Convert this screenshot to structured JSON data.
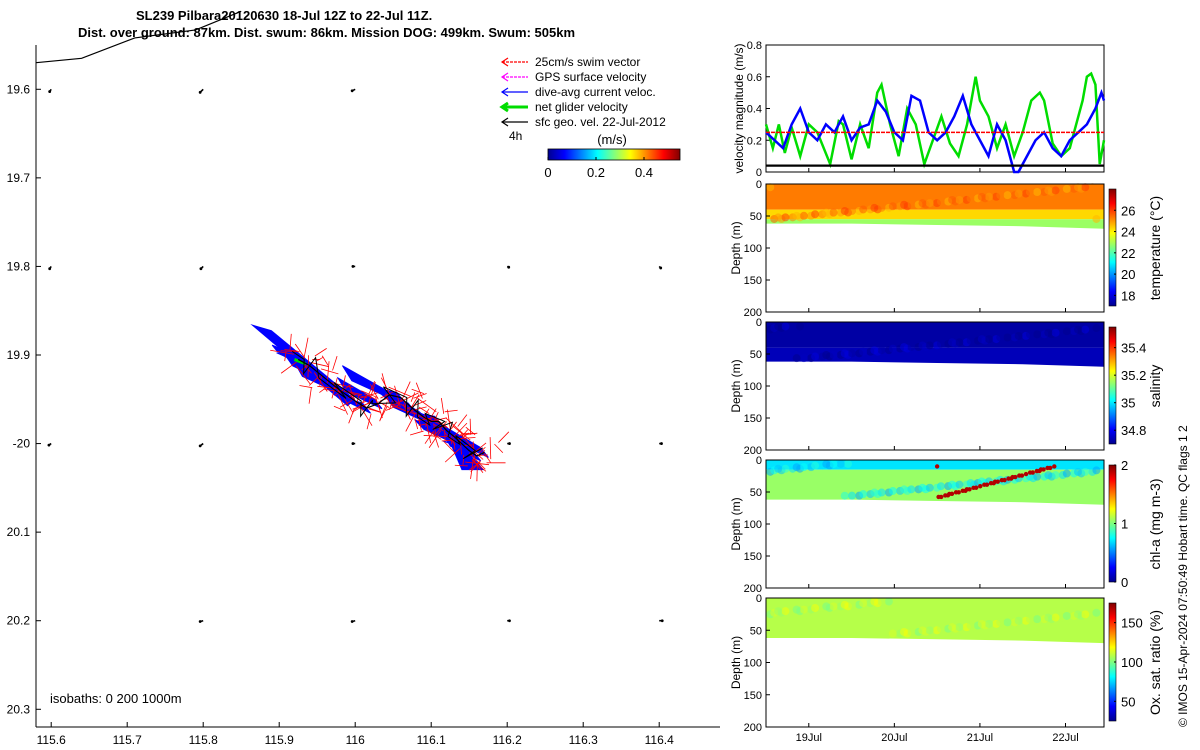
{
  "title_line1": "SL239 Pilbara20120630 18-Jul 12Z to 22-Jul 11Z.",
  "title_line2": "Dist. over ground: 87km. Dist. swum: 86km. Mission DOG: 499km. Swum: 505km",
  "credit": "© IMOS 15-Apr-2024 07:50:49 Hobart time. QC flags 1  2",
  "colors": {
    "swim": "#ff0000",
    "gps": "#ff00ff",
    "current": "#0000ff",
    "net": "#00dd00",
    "geo": "#000000"
  },
  "chart_data": [
    {
      "type": "map",
      "name": "track_map",
      "xlim": [
        115.58,
        116.48
      ],
      "ylim": [
        -20.32,
        -19.55
      ],
      "x_ticks": [
        115.6,
        115.7,
        115.8,
        115.9,
        116,
        116.1,
        116.2,
        116.3,
        116.4
      ],
      "x_tick_labels": [
        "115.6",
        "115.7",
        "115.8",
        "115.9",
        "116",
        "116.1",
        "116.2",
        "116.3",
        "116.4"
      ],
      "y_ticks": [
        -19.6,
        -19.7,
        -19.8,
        -19.9,
        -20,
        -20.1,
        -20.2,
        -20.3
      ],
      "y_tick_labels": [
        "19.6",
        "19.7",
        "19.8",
        "19.9",
        "-20",
        "20.1",
        "20.2",
        "20.3"
      ],
      "legend": [
        {
          "label": "25cm/s swim vector",
          "key": "swim"
        },
        {
          "label": "GPS surface velocity",
          "key": "gps"
        },
        {
          "label": "dive-avg current veloc.",
          "key": "current"
        },
        {
          "label": "net glider velocity",
          "key": "net"
        },
        {
          "label": "sfc geo. vel. 22-Jul-2012",
          "key": "geo"
        }
      ],
      "legend_note": "4h",
      "colorbar": {
        "label": "(m/s)",
        "ticks": [
          0,
          0.2,
          0.4
        ],
        "tick_labels": [
          "0",
          "0.2",
          "0.4"
        ],
        "range": [
          0,
          0.55
        ]
      },
      "isobath_note": "isobaths: 0   200  1000m",
      "coastline": [
        [
          115.58,
          -19.57
        ],
        [
          115.64,
          -19.565
        ],
        [
          115.71,
          -19.542
        ],
        [
          115.79,
          -19.533
        ],
        [
          115.85,
          -19.512
        ]
      ],
      "geo_vectors": [
        [
          115.6,
          -19.6,
          -0.002,
          -0.003
        ],
        [
          115.8,
          -19.6,
          -0.004,
          -0.004
        ],
        [
          116.0,
          -19.6,
          -0.004,
          -0.002
        ],
        [
          115.6,
          -19.8,
          -0.002,
          -0.003
        ],
        [
          115.8,
          -19.8,
          -0.003,
          -0.003
        ],
        [
          116.0,
          -19.8,
          -0.003,
          0
        ],
        [
          116.2,
          -19.8,
          0.002,
          -0.001
        ],
        [
          116.4,
          -19.8,
          0.002,
          -0.002
        ],
        [
          115.6,
          -20.0,
          -0.003,
          -0.002
        ],
        [
          115.8,
          -20.0,
          -0.004,
          -0.003
        ],
        [
          116.0,
          -20.0,
          -0.003,
          0
        ],
        [
          116.2,
          -20.0,
          0.003,
          0
        ],
        [
          116.4,
          -20.0,
          0.003,
          0
        ],
        [
          115.8,
          -20.2,
          -0.004,
          -0.001
        ],
        [
          116.0,
          -20.2,
          -0.004,
          -0.001
        ],
        [
          116.2,
          -20.2,
          0.003,
          0
        ],
        [
          116.4,
          -20.2,
          0.004,
          0
        ]
      ],
      "glider_track": [
        [
          115.925,
          -19.905
        ],
        [
          115.94,
          -19.912
        ],
        [
          115.96,
          -19.926
        ],
        [
          115.98,
          -19.94
        ],
        [
          116.0,
          -19.952
        ],
        [
          116.015,
          -19.96
        ],
        [
          116.03,
          -19.955
        ],
        [
          116.045,
          -19.945
        ],
        [
          116.06,
          -19.948
        ],
        [
          116.075,
          -19.96
        ],
        [
          116.09,
          -19.97
        ],
        [
          116.1,
          -19.975
        ],
        [
          116.11,
          -19.975
        ],
        [
          116.12,
          -19.985
        ],
        [
          116.13,
          -19.992
        ],
        [
          116.14,
          -20.0
        ],
        [
          116.15,
          -20.008
        ],
        [
          116.16,
          -20.014
        ],
        [
          116.17,
          -20.01
        ]
      ]
    },
    {
      "type": "line",
      "name": "velocity_magnitude",
      "ylabel": "velocity magnitude (m/s)",
      "x_range_days": [
        18.5,
        22.45
      ],
      "ylim": [
        0,
        0.8
      ],
      "y_ticks": [
        0,
        0.2,
        0.4,
        0.6,
        0.8
      ],
      "y_tick_labels": [
        "0",
        "0.2",
        "0.4",
        "0.6",
        "0.8"
      ],
      "series": [
        {
          "key": "net",
          "points": [
            [
              18.5,
              0.3
            ],
            [
              18.58,
              0.15
            ],
            [
              18.65,
              0.3
            ],
            [
              18.72,
              0.12
            ],
            [
              18.8,
              0.28
            ],
            [
              18.9,
              0.1
            ],
            [
              19.0,
              0.3
            ],
            [
              19.1,
              0.25
            ],
            [
              19.25,
              0.05
            ],
            [
              19.35,
              0.32
            ],
            [
              19.4,
              0.3
            ],
            [
              19.5,
              0.08
            ],
            [
              19.6,
              0.3
            ],
            [
              19.7,
              0.15
            ],
            [
              19.8,
              0.5
            ],
            [
              19.85,
              0.55
            ],
            [
              19.95,
              0.3
            ],
            [
              20.05,
              0.1
            ],
            [
              20.15,
              0.4
            ],
            [
              20.25,
              0.3
            ],
            [
              20.35,
              0.05
            ],
            [
              20.45,
              0.2
            ],
            [
              20.55,
              0.35
            ],
            [
              20.65,
              0.18
            ],
            [
              20.75,
              0.1
            ],
            [
              20.85,
              0.3
            ],
            [
              20.95,
              0.6
            ],
            [
              21.0,
              0.45
            ],
            [
              21.1,
              0.35
            ],
            [
              21.2,
              0.15
            ],
            [
              21.3,
              0.3
            ],
            [
              21.4,
              0.1
            ],
            [
              21.5,
              0.25
            ],
            [
              21.6,
              0.45
            ],
            [
              21.7,
              0.5
            ],
            [
              21.75,
              0.45
            ],
            [
              21.85,
              0.18
            ],
            [
              21.95,
              0.1
            ],
            [
              22.05,
              0.15
            ],
            [
              22.15,
              0.35
            ],
            [
              22.2,
              0.45
            ],
            [
              22.25,
              0.6
            ],
            [
              22.3,
              0.62
            ],
            [
              22.35,
              0.55
            ],
            [
              22.4,
              0.05
            ],
            [
              22.45,
              0.2
            ]
          ]
        },
        {
          "key": "current",
          "points": [
            [
              18.5,
              0.25
            ],
            [
              18.6,
              0.2
            ],
            [
              18.7,
              0.15
            ],
            [
              18.8,
              0.3
            ],
            [
              18.9,
              0.4
            ],
            [
              19.0,
              0.25
            ],
            [
              19.1,
              0.2
            ],
            [
              19.2,
              0.3
            ],
            [
              19.3,
              0.25
            ],
            [
              19.4,
              0.35
            ],
            [
              19.5,
              0.2
            ],
            [
              19.6,
              0.28
            ],
            [
              19.7,
              0.3
            ],
            [
              19.8,
              0.45
            ],
            [
              19.9,
              0.38
            ],
            [
              20.0,
              0.25
            ],
            [
              20.1,
              0.2
            ],
            [
              20.2,
              0.48
            ],
            [
              20.3,
              0.45
            ],
            [
              20.4,
              0.25
            ],
            [
              20.5,
              0.2
            ],
            [
              20.6,
              0.25
            ],
            [
              20.7,
              0.35
            ],
            [
              20.8,
              0.48
            ],
            [
              20.9,
              0.3
            ],
            [
              21.0,
              0.2
            ],
            [
              21.1,
              0.1
            ],
            [
              21.2,
              0.3
            ],
            [
              21.3,
              0.2
            ],
            [
              21.4,
              0.0
            ],
            [
              21.45,
              0.0
            ],
            [
              21.55,
              0.1
            ],
            [
              21.65,
              0.2
            ],
            [
              21.75,
              0.25
            ],
            [
              21.85,
              0.15
            ],
            [
              21.95,
              0.1
            ],
            [
              22.05,
              0.2
            ],
            [
              22.15,
              0.25
            ],
            [
              22.25,
              0.3
            ],
            [
              22.35,
              0.4
            ],
            [
              22.42,
              0.5
            ],
            [
              22.45,
              0.45
            ]
          ]
        },
        {
          "key": "swim",
          "constant": 0.25
        },
        {
          "key": "geo",
          "constant": 0.04
        }
      ]
    },
    {
      "type": "heatmap",
      "name": "temperature",
      "ylabel": "Depth (m)",
      "clabel": "temperature (°C)",
      "ylim": [
        0,
        200
      ],
      "y_ticks": [
        0,
        50,
        100,
        150,
        200
      ],
      "y_tick_labels": [
        "0",
        "50",
        "100",
        "150",
        "200"
      ],
      "clim": [
        17,
        28
      ],
      "c_ticks": [
        18,
        20,
        22,
        24,
        26
      ],
      "c_tick_labels": [
        "18",
        "20",
        "22",
        "24",
        "26"
      ],
      "profile_bottom_m": [
        [
          18.5,
          62
        ],
        [
          19.5,
          62
        ],
        [
          20.5,
          64
        ],
        [
          21.5,
          66
        ],
        [
          22.45,
          70
        ]
      ],
      "layers": [
        {
          "top_m": 0,
          "bottom_m": 40,
          "value": 25.3
        },
        {
          "top_m": 40,
          "bottom_m": 55,
          "value": 24.3
        },
        {
          "top_m": 55,
          "bottom_m": 70,
          "value": 22.8
        }
      ]
    },
    {
      "type": "heatmap",
      "name": "salinity",
      "ylabel": "Depth (m)",
      "clabel": "salinity",
      "ylim": [
        0,
        200
      ],
      "y_ticks": [
        0,
        50,
        100,
        150,
        200
      ],
      "y_tick_labels": [
        "0",
        "50",
        "100",
        "150",
        "200"
      ],
      "clim": [
        34.7,
        35.55
      ],
      "c_ticks": [
        34.8,
        35,
        35.2,
        35.4
      ],
      "c_tick_labels": [
        "34.8",
        "35",
        "35.2",
        "35.4"
      ],
      "profile_bottom_m": [
        [
          18.5,
          62
        ],
        [
          19.5,
          62
        ],
        [
          20.5,
          64
        ],
        [
          21.5,
          66
        ],
        [
          22.45,
          70
        ]
      ],
      "layers": [
        {
          "top_m": 0,
          "bottom_m": 40,
          "value": 34.72
        },
        {
          "top_m": 40,
          "bottom_m": 70,
          "value": 34.74
        }
      ]
    },
    {
      "type": "heatmap",
      "name": "chlorophyll",
      "ylabel": "Depth (m)",
      "clabel": "chl-a (mg m-3)",
      "ylim": [
        0,
        200
      ],
      "y_ticks": [
        0,
        50,
        100,
        150,
        200
      ],
      "y_tick_labels": [
        "0",
        "50",
        "100",
        "150",
        "200"
      ],
      "clim": [
        0,
        2
      ],
      "c_ticks": [
        0,
        1,
        2
      ],
      "c_tick_labels": [
        "0",
        "1",
        "2"
      ],
      "profile_bottom_m": [
        [
          18.5,
          62
        ],
        [
          19.5,
          62
        ],
        [
          20.5,
          64
        ],
        [
          21.5,
          66
        ],
        [
          22.45,
          70
        ]
      ],
      "layers": [
        {
          "top_m": 0,
          "bottom_m": 15,
          "value": 0.7
        },
        {
          "top_m": 15,
          "bottom_m": 70,
          "value": 1.05
        }
      ]
    },
    {
      "type": "heatmap",
      "name": "oxygen",
      "ylabel": "Depth (m)",
      "clabel": "Ox. sat. ratio (%)",
      "ylim": [
        0,
        200
      ],
      "y_ticks": [
        0,
        50,
        100,
        150,
        200
      ],
      "y_tick_labels": [
        "0",
        "50",
        "100",
        "150",
        "200"
      ],
      "clim": [
        25,
        175
      ],
      "c_ticks": [
        50,
        100,
        150
      ],
      "c_tick_labels": [
        "50",
        "100",
        "150"
      ],
      "profile_bottom_m": [
        [
          18.5,
          62
        ],
        [
          19.5,
          62
        ],
        [
          20.5,
          64
        ],
        [
          21.5,
          66
        ],
        [
          22.45,
          70
        ]
      ],
      "layers": [
        {
          "top_m": 0,
          "bottom_m": 70,
          "value": 108
        }
      ]
    }
  ],
  "time_axis": {
    "ticks_days": [
      19,
      20,
      21,
      22
    ],
    "tick_labels": [
      "19Jul",
      "20Jul",
      "21Jul",
      "22Jul"
    ]
  }
}
